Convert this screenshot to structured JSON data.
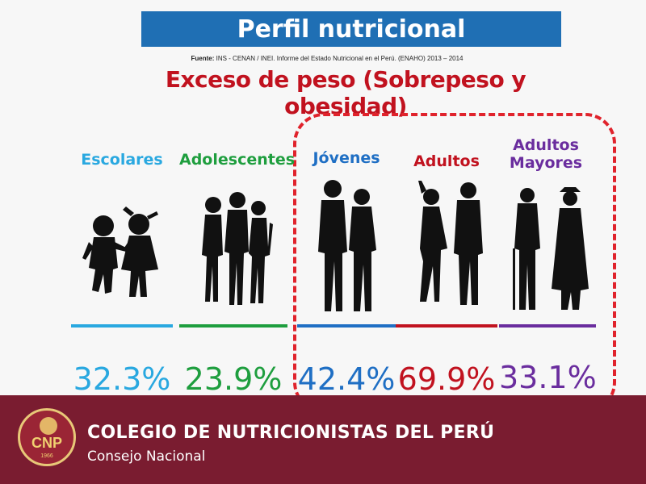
{
  "slide": {
    "title": "Perfil nutricional",
    "source_label": "Fuente:",
    "source_text": "INS - CENAN / INEI. Informe del Estado Nutricional en el Perú. (ENAHO) 2013 – 2014",
    "subtitle": "Exceso de peso (Sobrepeso y obesidad)"
  },
  "groups": [
    {
      "label": "Escolares",
      "value": "32.3%",
      "color": "#29a8e0",
      "icon": "children-silhouette-icon"
    },
    {
      "label": "Adolescentes",
      "value": "23.9%",
      "color": "#1e9e3e",
      "icon": "teens-silhouette-icon"
    },
    {
      "label": "Jóvenes",
      "value": "42.4%",
      "color": "#1f6fc4",
      "icon": "young-adults-silhouette-icon"
    },
    {
      "label": "Adultos",
      "value": "69.9%",
      "color": "#c1121f",
      "icon": "adults-silhouette-icon"
    },
    {
      "label": "Adultos Mayores",
      "value": "33.1%",
      "color": "#6a2d9e",
      "icon": "elderly-silhouette-icon"
    }
  ],
  "footer": {
    "logo_text": "CNP",
    "logo_year": "1966",
    "org_name": "COLEGIO DE NUTRICIONISTAS DEL PERÚ",
    "org_sub": "Consejo Nacional"
  }
}
